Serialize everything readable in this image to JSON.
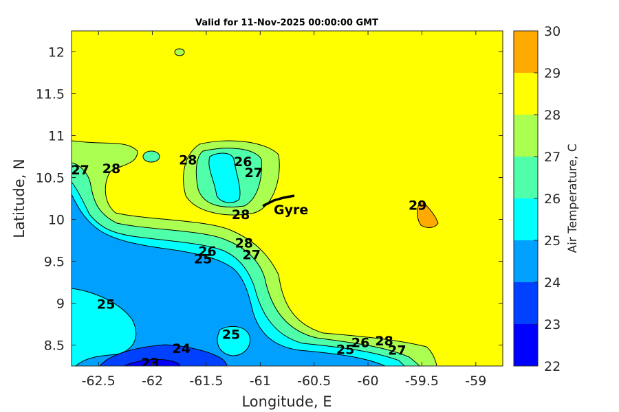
{
  "chart_data": {
    "type": "contour",
    "title": "Valid for 11-Nov-2025 00:00:00 GMT",
    "xlabel": "Longitude, E",
    "ylabel": "Latitude, N",
    "xlim": [
      -62.75,
      -58.75
    ],
    "ylim": [
      8.25,
      12.25
    ],
    "xticks": [
      -62.5,
      -62,
      -61.5,
      -61,
      -60.5,
      -60,
      -59.5,
      -59
    ],
    "yticks": [
      8.5,
      9,
      9.5,
      10,
      10.5,
      11,
      11.5,
      12
    ],
    "colorbar": {
      "label": "Air Temperature, C",
      "levels": [
        22,
        23,
        24,
        25,
        26,
        27,
        28,
        29,
        30
      ],
      "colors": [
        "#0000ff",
        "#0040ff",
        "#00a0ff",
        "#00ffff",
        "#50ffaa",
        "#aaff50",
        "#ffff00",
        "#ffaa00",
        "#ff5500"
      ]
    },
    "contour_labels": [
      {
        "text": "27",
        "lon": -62.67,
        "lat": 10.58
      },
      {
        "text": "28",
        "lon": -62.38,
        "lat": 10.6
      },
      {
        "text": "28",
        "lon": -61.67,
        "lat": 10.7
      },
      {
        "text": "26",
        "lon": -61.16,
        "lat": 10.68
      },
      {
        "text": "27",
        "lon": -61.06,
        "lat": 10.55
      },
      {
        "text": "28",
        "lon": -61.18,
        "lat": 10.05
      },
      {
        "text": "26",
        "lon": -61.49,
        "lat": 9.61
      },
      {
        "text": "25",
        "lon": -61.53,
        "lat": 9.52
      },
      {
        "text": "28",
        "lon": -61.15,
        "lat": 9.71
      },
      {
        "text": "27",
        "lon": -61.08,
        "lat": 9.57
      },
      {
        "text": "25",
        "lon": -62.43,
        "lat": 8.98
      },
      {
        "text": "25",
        "lon": -61.27,
        "lat": 8.62
      },
      {
        "text": "24",
        "lon": -61.73,
        "lat": 8.45
      },
      {
        "text": "23",
        "lon": -62.02,
        "lat": 8.28
      },
      {
        "text": "26",
        "lon": -60.07,
        "lat": 8.52
      },
      {
        "text": "28",
        "lon": -59.85,
        "lat": 8.54
      },
      {
        "text": "25",
        "lon": -60.21,
        "lat": 8.44
      },
      {
        "text": "27",
        "lon": -59.73,
        "lat": 8.43
      },
      {
        "text": "29",
        "lon": -59.54,
        "lat": 10.16
      }
    ],
    "markers": [
      {
        "label": "Gyre",
        "lon": -60.93,
        "lat": 10.2
      }
    ]
  }
}
